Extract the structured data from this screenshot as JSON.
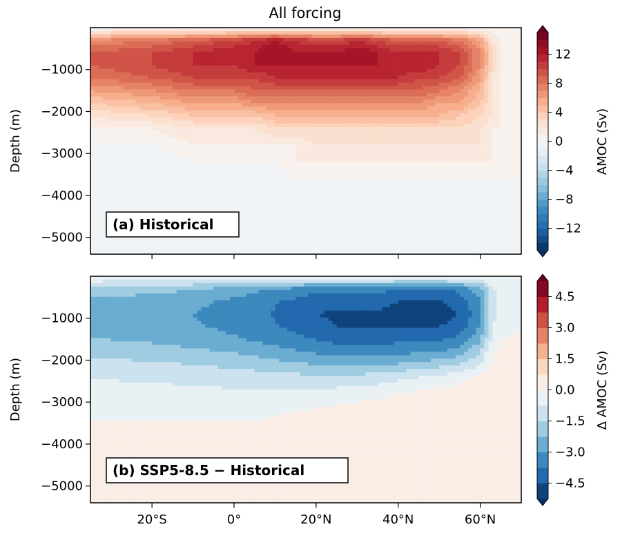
{
  "figure": {
    "title": "All forcing"
  },
  "chart_data": [
    {
      "type": "heatmap",
      "panel_label": "(a) Historical",
      "title": "All forcing",
      "xlabel": "",
      "ylabel": "Depth (m)",
      "xlim": [
        -35,
        70
      ],
      "ylim": [
        -5400,
        0
      ],
      "x_ticks": [
        {
          "value": -20,
          "label": "20$^\\circ$S"
        },
        {
          "value": 0,
          "label": "0$^\\circ$"
        },
        {
          "value": 20,
          "label": "20$^\\circ$N"
        },
        {
          "value": 40,
          "label": "40$^\\circ$N"
        },
        {
          "value": 60,
          "label": "60$^\\circ$N"
        }
      ],
      "x_tick_labels_shown": false,
      "y_ticks": [
        -1000,
        -2000,
        -3000,
        -4000,
        -5000
      ],
      "y_tick_labels": [
        "−1000",
        "−2000",
        "−3000",
        "−4000",
        "−5000"
      ],
      "colorbar": {
        "label": "AMOC (Sv)",
        "range": [
          -15,
          15
        ],
        "n_levels": 30,
        "ticks": [
          12,
          8,
          4,
          0,
          -4,
          -8,
          -12
        ],
        "tick_labels": [
          "12",
          "8",
          "4",
          "0",
          "−4",
          "−8",
          "−12"
        ],
        "extend": "both"
      },
      "x": [
        -35,
        -20,
        -10,
        0,
        5,
        10,
        15,
        20,
        25,
        30,
        35,
        40,
        45,
        50,
        55,
        60,
        63,
        65,
        70
      ],
      "y": [
        0,
        -300,
        -600,
        -900,
        -1200,
        -1500,
        -1800,
        -2100,
        -2400,
        -2800,
        -3200,
        -3600,
        -4000,
        -4500,
        -5000,
        -5400
      ],
      "z": [
        [
          0,
          0,
          0,
          0,
          0,
          0,
          0,
          0,
          0,
          0,
          0,
          0,
          0,
          0,
          0,
          0,
          0,
          0,
          0
        ],
        [
          7,
          8,
          9,
          10,
          11,
          12,
          11,
          10,
          10,
          11,
          10,
          9,
          9,
          9,
          8,
          6,
          2,
          1,
          0
        ],
        [
          9,
          10,
          11,
          12,
          12,
          13,
          12,
          12,
          12,
          13,
          12,
          11,
          11,
          11,
          10,
          7,
          3,
          1,
          0
        ],
        [
          9,
          10,
          11,
          11,
          12,
          12,
          12,
          12,
          12,
          12,
          12,
          12,
          12,
          11,
          10,
          7,
          3,
          1,
          0
        ],
        [
          8,
          9,
          10,
          10,
          10,
          11,
          11,
          11,
          11,
          11,
          11,
          11,
          10,
          10,
          9,
          6,
          2,
          1,
          0
        ],
        [
          6,
          7,
          8,
          8,
          9,
          9,
          9,
          9,
          9,
          9,
          9,
          9,
          9,
          8,
          7,
          5,
          2,
          1,
          0
        ],
        [
          4,
          5,
          6,
          6,
          7,
          7,
          7,
          7,
          7,
          7,
          7,
          7,
          7,
          6,
          6,
          4,
          2,
          1,
          0
        ],
        [
          2,
          3,
          4,
          4,
          4,
          5,
          5,
          5,
          5,
          5,
          5,
          5,
          5,
          5,
          4,
          3,
          2,
          1,
          0
        ],
        [
          1,
          1,
          2,
          2,
          2,
          3,
          3,
          3,
          3,
          3,
          3,
          3,
          3,
          3,
          3,
          2,
          1,
          1,
          0
        ],
        [
          0,
          0,
          1,
          1,
          1,
          1,
          1,
          2,
          2,
          2,
          2,
          2,
          2,
          2,
          2,
          2,
          1,
          0,
          0
        ],
        [
          -1,
          -1,
          0,
          0,
          0,
          0,
          1,
          1,
          1,
          1,
          1,
          1,
          1,
          1,
          1,
          1,
          1,
          0,
          0
        ],
        [
          -1,
          -1,
          -1,
          -1,
          -1,
          -1,
          0,
          0,
          0,
          0,
          0,
          0,
          0,
          0,
          0,
          0,
          0,
          0,
          0
        ],
        [
          -1,
          -1,
          -1,
          -1,
          -1,
          -1,
          -1,
          -1,
          -1,
          -1,
          -1,
          -1,
          -1,
          -1,
          -1,
          -1,
          -1,
          -1,
          -1
        ],
        [
          -1,
          -1,
          -1,
          -1,
          -1,
          -1,
          -1,
          -1,
          -1,
          -1,
          -1,
          -1,
          -1,
          -1,
          -1,
          -1,
          -1,
          -1,
          -1
        ],
        [
          -1,
          -1,
          -1,
          -1,
          -1,
          -1,
          -1,
          -1,
          -1,
          -1,
          -1,
          -1,
          -1,
          -1,
          -1,
          -1,
          -1,
          -1,
          -1
        ],
        [
          0,
          0,
          0,
          0,
          0,
          0,
          0,
          0,
          0,
          0,
          0,
          0,
          0,
          0,
          0,
          0,
          0,
          0,
          0
        ]
      ]
    },
    {
      "type": "heatmap",
      "panel_label": "(b) SSP5-8.5 − Historical",
      "xlabel": "",
      "ylabel": "Depth (m)",
      "xlim": [
        -35,
        70
      ],
      "ylim": [
        -5400,
        0
      ],
      "x_ticks": [
        {
          "value": -20,
          "label": "20$^\\circ$S"
        },
        {
          "value": 0,
          "label": "0$^\\circ$"
        },
        {
          "value": 20,
          "label": "20$^\\circ$N"
        },
        {
          "value": 40,
          "label": "40$^\\circ$N"
        },
        {
          "value": 60,
          "label": "60$^\\circ$N"
        }
      ],
      "x_tick_labels": [
        "20°S",
        "0°",
        "20°N",
        "40°N",
        "60°N"
      ],
      "y_ticks": [
        -1000,
        -2000,
        -3000,
        -4000,
        -5000
      ],
      "y_tick_labels": [
        "−1000",
        "−2000",
        "−3000",
        "−4000",
        "−5000"
      ],
      "colorbar": {
        "label": "Δ AMOC (Sv)",
        "range": [
          -5.25,
          5.25
        ],
        "n_levels": 14,
        "ticks": [
          4.5,
          3.0,
          1.5,
          0.0,
          -1.5,
          -3.0,
          -4.5
        ],
        "tick_labels": [
          "4.5",
          "3.0",
          "1.5",
          "0.0",
          "−1.5",
          "−3.0",
          "−4.5"
        ],
        "extend": "both"
      },
      "x": [
        -35,
        -20,
        -10,
        0,
        5,
        10,
        15,
        20,
        25,
        30,
        35,
        40,
        45,
        50,
        55,
        60,
        63,
        65,
        70
      ],
      "y": [
        0,
        -300,
        -600,
        -900,
        -1200,
        -1500,
        -1800,
        -2100,
        -2400,
        -2800,
        -3200,
        -3600,
        -4000,
        -4500,
        -5000,
        -5400
      ],
      "z": [
        [
          0,
          0,
          0,
          0,
          0,
          0,
          0,
          0,
          0,
          0,
          0,
          0,
          0,
          0,
          0,
          0,
          0,
          0,
          0
        ],
        [
          -1.8,
          -2.0,
          -2.2,
          -2.5,
          -2.8,
          -3.0,
          -3.2,
          -3.5,
          -3.5,
          -3.5,
          -3.5,
          -3.7,
          -3.8,
          -3.8,
          -3.5,
          -2.5,
          -0.8,
          -0.5,
          -0.2
        ],
        [
          -2.4,
          -2.6,
          -2.8,
          -3.2,
          -3.5,
          -3.7,
          -3.9,
          -4.2,
          -4.3,
          -4.3,
          -4.3,
          -4.5,
          -4.6,
          -4.6,
          -4.2,
          -3.0,
          -1.0,
          -0.6,
          -0.2
        ],
        [
          -2.6,
          -2.8,
          -3.0,
          -3.3,
          -3.6,
          -3.8,
          -4.1,
          -4.5,
          -4.6,
          -4.6,
          -4.6,
          -4.8,
          -4.9,
          -4.8,
          -4.5,
          -3.2,
          -1.0,
          -0.5,
          -0.2
        ],
        [
          -2.5,
          -2.7,
          -2.9,
          -3.2,
          -3.5,
          -3.7,
          -4.0,
          -4.3,
          -4.5,
          -4.5,
          -4.5,
          -4.6,
          -4.6,
          -4.5,
          -4.2,
          -3.0,
          -0.8,
          -0.3,
          0.0
        ],
        [
          -2.2,
          -2.4,
          -2.6,
          -2.9,
          -3.1,
          -3.3,
          -3.5,
          -3.8,
          -4.0,
          -4.0,
          -4.0,
          -4.0,
          -4.0,
          -3.9,
          -3.5,
          -2.4,
          -0.5,
          0.0,
          0.1
        ],
        [
          -1.8,
          -1.9,
          -2.1,
          -2.3,
          -2.5,
          -2.7,
          -2.9,
          -3.1,
          -3.3,
          -3.3,
          -3.3,
          -3.2,
          -3.1,
          -3.0,
          -2.6,
          -1.6,
          0.0,
          0.1,
          0.1
        ],
        [
          -1.2,
          -1.4,
          -1.5,
          -1.7,
          -1.8,
          -2.0,
          -2.1,
          -2.3,
          -2.4,
          -2.4,
          -2.3,
          -2.2,
          -2.0,
          -1.8,
          -1.5,
          -0.8,
          0.1,
          0.2,
          0.1
        ],
        [
          -0.8,
          -0.9,
          -1.0,
          -1.1,
          -1.2,
          -1.3,
          -1.3,
          -1.4,
          -1.4,
          -1.3,
          -1.2,
          -1.0,
          -0.8,
          -0.6,
          -0.3,
          0.2,
          0.2,
          0.2,
          0.1
        ],
        [
          -0.4,
          -0.5,
          -0.5,
          -0.6,
          -0.6,
          -0.6,
          -0.6,
          -0.5,
          -0.4,
          -0.3,
          -0.2,
          0.0,
          0.2,
          0.4,
          0.5,
          0.5,
          0.3,
          0.2,
          0.1
        ],
        [
          -0.1,
          -0.2,
          -0.2,
          -0.2,
          -0.2,
          -0.1,
          0.0,
          0.1,
          0.2,
          0.3,
          0.4,
          0.5,
          0.6,
          0.6,
          0.6,
          0.5,
          0.3,
          0.2,
          0.1
        ],
        [
          0.1,
          0.1,
          0.1,
          0.1,
          0.1,
          0.2,
          0.3,
          0.3,
          0.3,
          0.4,
          0.5,
          0.6,
          0.6,
          0.6,
          0.5,
          0.4,
          0.3,
          0.2,
          0.1
        ],
        [
          0.1,
          0.1,
          0.1,
          0.1,
          0.1,
          0.2,
          0.3,
          0.3,
          0.3,
          0.3,
          0.4,
          0.4,
          0.4,
          0.4,
          0.3,
          0.3,
          0.2,
          0.1,
          0.1
        ],
        [
          0.1,
          0.1,
          0.1,
          0.1,
          0.1,
          0.1,
          0.2,
          0.2,
          0.2,
          0.2,
          0.2,
          0.2,
          0.2,
          0.2,
          0.2,
          0.2,
          0.1,
          0.1,
          0.1
        ],
        [
          0.1,
          0.1,
          0.1,
          0.1,
          0.1,
          0.1,
          0.1,
          0.1,
          0.1,
          0.1,
          0.1,
          0.1,
          0.1,
          0.1,
          0.1,
          0.1,
          0.1,
          0.1,
          0.1
        ],
        [
          0.1,
          0.1,
          0.1,
          0.1,
          0.1,
          0.1,
          0.1,
          0.1,
          0.1,
          0.1,
          0.1,
          0.1,
          0.1,
          0.1,
          0.1,
          0.1,
          0.1,
          0.1,
          0.1
        ]
      ]
    }
  ]
}
